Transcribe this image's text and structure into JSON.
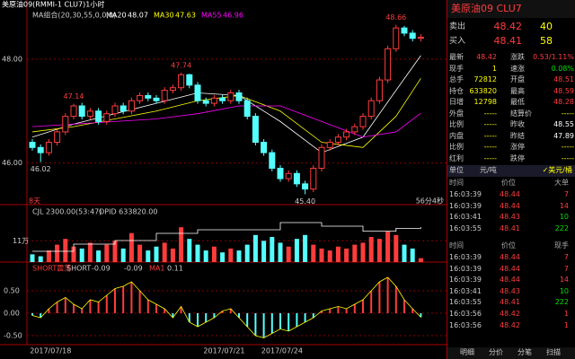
{
  "main": {
    "title": "美原油09(RMMI-1 CLU7)1小时",
    "indicator": "MA组合(20,30,55,0,0,0)",
    "ylim": [
      45.2,
      49.0
    ],
    "yticks": [
      {
        "value": 48,
        "label": "48.00"
      },
      {
        "value": 46,
        "label": "46.00"
      }
    ],
    "candles": {
      "open": [
        46.4,
        46.3,
        46.2,
        46.4,
        46.6,
        46.9,
        47.1,
        46.9,
        47.0,
        46.8,
        46.95,
        47.1,
        47.0,
        47.2,
        47.3,
        47.25,
        47.2,
        47.4,
        47.45,
        47.7,
        47.5,
        47.2,
        47.15,
        47.25,
        47.2,
        47.35,
        47.2,
        46.9,
        46.4,
        46.2,
        45.9,
        45.7,
        45.8,
        45.6,
        45.5,
        45.9,
        46.3,
        46.4,
        46.5,
        46.6,
        46.7,
        46.9,
        47.2,
        47.6,
        48.2,
        48.6,
        48.5,
        48.4
      ],
      "high": [
        46.46,
        46.36,
        46.46,
        46.66,
        46.96,
        47.14,
        47.16,
        47.06,
        47.06,
        47.01,
        47.16,
        47.16,
        47.26,
        47.36,
        47.36,
        47.31,
        47.46,
        47.51,
        47.74,
        47.72,
        47.56,
        47.26,
        47.31,
        47.31,
        47.41,
        47.41,
        47.26,
        46.96,
        46.46,
        46.26,
        45.96,
        45.86,
        45.86,
        45.66,
        45.96,
        46.36,
        46.46,
        46.56,
        46.66,
        46.76,
        46.96,
        47.26,
        47.66,
        48.26,
        48.66,
        48.64,
        48.56,
        48.48
      ],
      "low": [
        46.24,
        46.02,
        46.14,
        46.34,
        46.54,
        46.84,
        46.84,
        46.84,
        46.74,
        46.74,
        46.89,
        46.94,
        46.94,
        47.14,
        47.19,
        47.14,
        47.14,
        47.34,
        47.39,
        47.44,
        47.14,
        47.09,
        47.09,
        47.14,
        47.14,
        47.14,
        46.84,
        46.34,
        46.14,
        45.84,
        45.64,
        45.64,
        45.54,
        45.4,
        45.44,
        45.84,
        46.24,
        46.34,
        46.44,
        46.54,
        46.64,
        46.84,
        47.14,
        47.54,
        48.14,
        48.44,
        48.34,
        48.34
      ],
      "close": [
        46.3,
        46.2,
        46.4,
        46.6,
        46.9,
        47.1,
        46.9,
        47.0,
        46.8,
        46.95,
        47.1,
        47.0,
        47.2,
        47.3,
        47.25,
        47.2,
        47.4,
        47.45,
        47.7,
        47.5,
        47.2,
        47.15,
        47.25,
        47.2,
        47.35,
        47.2,
        46.9,
        46.4,
        46.2,
        45.9,
        45.7,
        45.8,
        45.6,
        45.5,
        45.9,
        46.3,
        46.4,
        46.5,
        46.6,
        46.7,
        46.9,
        47.2,
        47.6,
        48.2,
        48.6,
        48.5,
        48.4,
        48.42
      ]
    },
    "up_color": "#ff3c3c",
    "down_color": "#54ffff",
    "ma_index": [
      0,
      5,
      10,
      15,
      20,
      25,
      30,
      35,
      40,
      44,
      47
    ],
    "ma": [
      {
        "name": "MA20",
        "value": 48.07,
        "color": "#ffffff",
        "values": [
          46.5,
          46.75,
          46.95,
          47.15,
          47.35,
          47.3,
          46.8,
          46.2,
          46.5,
          47.4,
          48.07
        ]
      },
      {
        "name": "MA30",
        "value": 47.63,
        "color": "#ffff00",
        "values": [
          46.6,
          46.7,
          46.85,
          47.0,
          47.2,
          47.3,
          47.0,
          46.4,
          46.3,
          46.9,
          47.63
        ]
      },
      {
        "name": "MA55",
        "value": 46.96,
        "color": "#ff00ff",
        "values": [
          46.7,
          46.75,
          46.8,
          46.85,
          46.95,
          47.1,
          47.1,
          46.8,
          46.5,
          46.6,
          46.96
        ]
      }
    ],
    "annotations": [
      {
        "index": 5,
        "value": 47.14
      },
      {
        "index": 18,
        "value": 47.74
      },
      {
        "index": 1,
        "value": 46.02
      },
      {
        "index": 33,
        "value": 45.4,
        "label": "45.40"
      },
      {
        "index": 44,
        "value": 48.66
      }
    ],
    "left_note": "8天",
    "right_note": "56分4秒"
  },
  "volume": {
    "label": "CJL 2300.00(53:47)",
    "opid_label": "OPID 633820.00",
    "ylim": [
      0,
      260000
    ],
    "yticks": [
      {
        "value": 110000,
        "label": "11万"
      }
    ],
    "values": [
      40000,
      30000,
      60000,
      90000,
      120000,
      80000,
      70000,
      100000,
      60000,
      90000,
      110000,
      70000,
      150000,
      90000,
      60000,
      80000,
      100000,
      70000,
      180000,
      120000,
      90000,
      60000,
      80000,
      50000,
      70000,
      60000,
      90000,
      140000,
      110000,
      130000,
      100000,
      80000,
      120000,
      140000,
      90000,
      70000,
      60000,
      80000,
      70000,
      90000,
      100000,
      130000,
      120000,
      160000,
      140000,
      90000,
      70000,
      20000
    ],
    "opid_lim": [
      590000,
      650000
    ],
    "opid": [
      600000,
      610000,
      615000,
      625000,
      630000,
      630000,
      640000,
      635000,
      628000,
      632000,
      633820
    ]
  },
  "osc": {
    "label": "SHORT震荡",
    "short_name": "SHORT",
    "short_value": -0.09,
    "second_value": -0.09,
    "ma_name": "MA1",
    "ma_value": 0.11,
    "ylim": [
      -0.7,
      1.1
    ],
    "yticks": [
      {
        "value": 0.5,
        "label": "0.50"
      },
      {
        "value": 0,
        "label": "0.00"
      },
      {
        "value": -0.5,
        "label": "-0.50"
      }
    ],
    "values": [
      -0.05,
      -0.1,
      0.1,
      0.25,
      0.35,
      0.2,
      0.1,
      0.3,
      0.25,
      0.4,
      0.55,
      0.6,
      0.7,
      0.5,
      0.3,
      0.2,
      0.1,
      -0.1,
      0.15,
      -0.2,
      -0.3,
      -0.2,
      -0.1,
      0.05,
      0.1,
      -0.1,
      -0.3,
      -0.5,
      -0.55,
      -0.45,
      -0.35,
      -0.4,
      -0.3,
      -0.2,
      -0.1,
      0.05,
      0.1,
      0.15,
      0.1,
      0.2,
      0.3,
      0.5,
      0.7,
      0.8,
      0.6,
      0.3,
      0.1,
      -0.09
    ]
  },
  "dates": [
    {
      "index": 1,
      "label": "2017/07/18"
    },
    {
      "index": 22,
      "label": "2017/07/21"
    },
    {
      "index": 29,
      "label": "2017/07/24"
    }
  ],
  "panel": {
    "title": "美原油09  CLU7",
    "ask": {
      "label": "卖出",
      "price": "48.42",
      "size": "40"
    },
    "bid": {
      "label": "买入",
      "price": "48.41",
      "size": "58"
    },
    "quotes": [
      [
        "最新",
        "48.42",
        "涨跌",
        "0.53/1.11%"
      ],
      [
        "现手",
        "1",
        "速涨",
        "0.08%"
      ],
      [
        "总手",
        "72812",
        "开盘",
        "48.51"
      ],
      [
        "持仓",
        "633820",
        "最高",
        "48.59"
      ],
      [
        "日增",
        "12798",
        "最低",
        "48.28"
      ],
      [
        "外盘",
        "-----",
        "结算价",
        "-----"
      ],
      [
        "比例",
        "-----",
        "昨收",
        "48.55"
      ],
      [
        "内盘",
        "-----",
        "昨结",
        "47.89"
      ],
      [
        "比例",
        "-----",
        "涨停",
        "-----"
      ],
      [
        "红利",
        "-----",
        "跌停",
        "-----"
      ]
    ],
    "quote_colors": [
      [
        "#ff3c3c",
        "#ff3c3c"
      ],
      [
        "#ffff00",
        "#00e000"
      ],
      [
        "#ffff00",
        "#ff3c3c"
      ],
      [
        "#ffff00",
        "#ff3c3c"
      ],
      [
        "#ffff00",
        "#ff3c3c"
      ],
      [
        "#ffff00",
        "#ffff00"
      ],
      [
        "#ffff00",
        "#ffffff"
      ],
      [
        "#ffff00",
        "#ffffff"
      ],
      [
        "#ffff00",
        "#ffff00"
      ],
      [
        "#ffff00",
        "#ffff00"
      ]
    ],
    "unit": [
      "单位",
      "元/吨",
      "✓美元/桶"
    ],
    "big_header": [
      "时间",
      "价位",
      "大单"
    ],
    "big": [
      [
        "16:03:39",
        "48.44",
        "7"
      ],
      [
        "16:03:39",
        "48.44",
        "14"
      ],
      [
        "16:03:41",
        "48.43",
        "10"
      ],
      [
        "16:03:55",
        "48.41",
        "222"
      ]
    ],
    "tick_header": [
      "时间",
      "价位",
      "现手"
    ],
    "ticks": [
      [
        "16:03:39",
        "48.44",
        "7"
      ],
      [
        "16:03:39",
        "48.44",
        "7"
      ],
      [
        "16:03:39",
        "48.44",
        "14"
      ],
      [
        "16:03:41",
        "48.43",
        "10"
      ],
      [
        "16:03:55",
        "48.41",
        "222"
      ],
      [
        "16:03:56",
        "48.42",
        "1"
      ],
      [
        "16:03:56",
        "48.42",
        "1"
      ]
    ],
    "tabs": [
      "明细",
      "分价",
      "分笔",
      "扫描"
    ]
  }
}
